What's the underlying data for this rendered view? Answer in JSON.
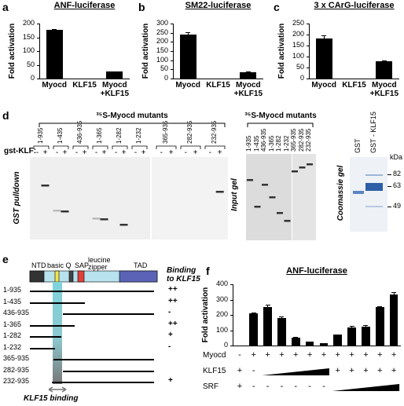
{
  "chart_data": [
    {
      "type": "bar",
      "label": "a",
      "title": "ANF-luciferase",
      "y_label": "Fold activation",
      "categories": [
        "Myocd",
        "KLF15",
        "Myocd +KLF15"
      ],
      "values": [
        178,
        1,
        25
      ],
      "errors": [
        3,
        0,
        2
      ],
      "color": "#000000",
      "ylim": [
        0,
        200
      ],
      "yticks": [
        0,
        50,
        100,
        150,
        200
      ]
    },
    {
      "type": "bar",
      "label": "b",
      "title": "SM22-luciferase",
      "y_label": "Fold activation",
      "categories": [
        "Myocd",
        "KLF15",
        "Myocd +KLF15"
      ],
      "values": [
        240,
        1,
        35
      ],
      "errors": [
        12,
        0,
        3
      ],
      "color": "#000000",
      "ylim": [
        0,
        300
      ],
      "yticks": [
        0,
        50,
        100,
        150,
        200,
        250,
        300
      ]
    },
    {
      "type": "bar",
      "label": "c",
      "title": "3 x CArG-luciferase",
      "y_label": "Fold activation",
      "categories": [
        "Myocd",
        "KLF15",
        "Myocd +KLF15"
      ],
      "values": [
        183,
        0,
        78
      ],
      "errors": [
        12,
        0,
        5
      ],
      "color": "#000000",
      "ylim": [
        0,
        250
      ],
      "yticks": [
        0,
        50,
        100,
        150,
        200,
        250
      ]
    },
    {
      "type": "bar",
      "label": "f",
      "title": "ANF-luciferase",
      "y_label": "Fold activation",
      "values": [
        0,
        210,
        250,
        180,
        50,
        25,
        15,
        70,
        120,
        125,
        250,
        335
      ],
      "errors": [
        0,
        4,
        15,
        12,
        8,
        3,
        2,
        3,
        10,
        10,
        5,
        15
      ],
      "color": "#000000",
      "ylim": [
        0,
        400
      ],
      "yticks": [
        0,
        100,
        200,
        300,
        400
      ],
      "conditions": [
        {
          "name": "Myocd",
          "cells": [
            "-",
            "+",
            "+",
            "+",
            "+",
            "+",
            "+",
            "+",
            "+",
            "+",
            "+",
            "+"
          ]
        },
        {
          "name": "KLF15",
          "cells": [
            "+",
            "-",
            null,
            null,
            null,
            null,
            null,
            "+",
            "+",
            "+",
            "+",
            "+"
          ]
        },
        {
          "name": "SRF",
          "cells": [
            "+",
            "-",
            "-",
            "-",
            "-",
            "-",
            "-",
            null,
            null,
            null,
            null,
            null
          ]
        }
      ]
    }
  ],
  "panels": {
    "d": {
      "label": "d",
      "pulldown": {
        "header": "³⁵S-Myocd mutants",
        "lanes": [
          "1-935",
          "1-435",
          "436-935",
          "1-365",
          "1-282",
          "1-232",
          "365-935",
          "282-935",
          "232-935"
        ],
        "row_label": "gst-KLF:",
        "signs": [
          "-",
          "+"
        ],
        "side_label": "GST pulldown"
      },
      "input": {
        "header": "³⁵S-Myocd mutants",
        "lanes": [
          "1-935",
          "1-435",
          "436-935",
          "1-365",
          "1-282",
          "1-232",
          "365-935",
          "282-935",
          "232-935"
        ],
        "side_label": "Input gel"
      },
      "coomassie": {
        "lanes": [
          "GST",
          "GST - KLF15"
        ],
        "unit": "kDa",
        "markers": [
          "82",
          "63",
          "49"
        ],
        "side_label": "Coomassie gel"
      }
    },
    "e": {
      "label": "e",
      "domains": [
        "NTD",
        "basic Q",
        "SAP",
        "leucine zipper",
        "TAD"
      ],
      "binding_header": "Binding to KLF15",
      "constructs": [
        {
          "name": "1-935",
          "binding": "++"
        },
        {
          "name": "1-435",
          "binding": "++"
        },
        {
          "name": "436-935",
          "binding": "-"
        },
        {
          "name": "1-365",
          "binding": "++"
        },
        {
          "name": "1-282",
          "binding": "+"
        },
        {
          "name": "1-232",
          "binding": "-"
        },
        {
          "name": "365-935",
          "binding": null
        },
        {
          "name": "282-935",
          "binding": null
        },
        {
          "name": "232-935",
          "binding": "+"
        }
      ],
      "footer": "KLF15 binding"
    }
  }
}
